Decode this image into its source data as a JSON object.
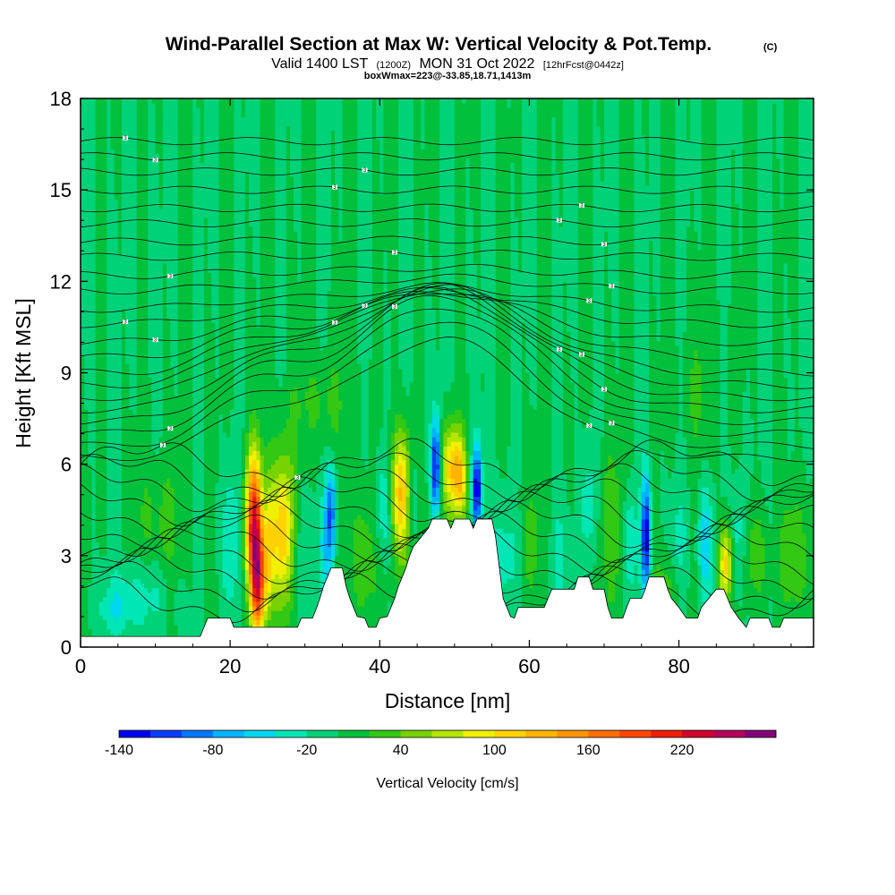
{
  "chart_data": {
    "type": "heatmap",
    "title": "Wind-Parallel Section at Max W: Vertical Velocity & Pot.Temp.",
    "title_mark": "(C)",
    "subtitle_parts": [
      "Valid 1400 LST",
      "(1200Z)",
      "MON 31 Oct 2022",
      "[12hrFcst@0442z]"
    ],
    "subtitle2": "boxWmax=223@-33.85,18.71,1413m",
    "xlabel": "Distance [nm]",
    "ylabel": "Height [Kft MSL]",
    "xlim": [
      0,
      98
    ],
    "ylim": [
      0,
      18
    ],
    "x_ticks": [
      0,
      20,
      40,
      60,
      80
    ],
    "y_ticks": [
      0,
      3,
      6,
      9,
      12,
      15,
      18
    ],
    "grid": false,
    "background_velocity": 0,
    "colorbar": {
      "label": "Vertical Velocity [cm/s]",
      "min": -140,
      "step": 20,
      "colors": [
        "#0000f0",
        "#0a3cff",
        "#0078ff",
        "#00b4ff",
        "#00d7f0",
        "#00e6b4",
        "#00d278",
        "#00c03c",
        "#32c814",
        "#78d200",
        "#b4e600",
        "#f0f000",
        "#ffd200",
        "#ffb400",
        "#ff9600",
        "#ff6e00",
        "#ff4600",
        "#f01e00",
        "#d2002d",
        "#b4005a",
        "#820078"
      ],
      "tick_values": [
        -140,
        -80,
        -20,
        40,
        100,
        160,
        220
      ],
      "tick_labels": [
        "-140",
        "-80",
        "-20",
        "40",
        "100",
        "160",
        "220"
      ]
    },
    "terrain_kft": [
      [
        0,
        0.35
      ],
      [
        16,
        0.35
      ],
      [
        16.5,
        0.65
      ],
      [
        17,
        0.95
      ],
      [
        20,
        0.95
      ],
      [
        20.5,
        0.65
      ],
      [
        29,
        0.65
      ],
      [
        29.5,
        0.95
      ],
      [
        31,
        0.95
      ],
      [
        31.5,
        1.25
      ],
      [
        32,
        1.6
      ],
      [
        32.5,
        2.0
      ],
      [
        33,
        2.3
      ],
      [
        33.5,
        2.6
      ],
      [
        35,
        2.6
      ],
      [
        35.5,
        2.0
      ],
      [
        36,
        1.6
      ],
      [
        36.5,
        1.3
      ],
      [
        37,
        1.0
      ],
      [
        38,
        0.95
      ],
      [
        38.5,
        0.65
      ],
      [
        39.5,
        0.65
      ],
      [
        40,
        0.95
      ],
      [
        41,
        1.0
      ],
      [
        41.5,
        1.3
      ],
      [
        42,
        1.6
      ],
      [
        42.5,
        2.0
      ],
      [
        43,
        2.3
      ],
      [
        43.5,
        2.6
      ],
      [
        44,
        3.0
      ],
      [
        44.5,
        3.3
      ],
      [
        45.5,
        3.6
      ],
      [
        46.5,
        3.9
      ],
      [
        47,
        4.2
      ],
      [
        49,
        4.2
      ],
      [
        49.5,
        3.9
      ],
      [
        50,
        4.2
      ],
      [
        52,
        4.2
      ],
      [
        52.5,
        3.9
      ],
      [
        53,
        4.2
      ],
      [
        55,
        4.2
      ],
      [
        55.5,
        3.6
      ],
      [
        56,
        2.6
      ],
      [
        56.5,
        1.6
      ],
      [
        57,
        1.3
      ],
      [
        57.5,
        1.0
      ],
      [
        58,
        0.95
      ],
      [
        58.5,
        1.3
      ],
      [
        62,
        1.3
      ],
      [
        62.5,
        1.6
      ],
      [
        63,
        1.9
      ],
      [
        66,
        1.9
      ],
      [
        66.5,
        2.3
      ],
      [
        68,
        2.3
      ],
      [
        68.5,
        1.9
      ],
      [
        70,
        1.9
      ],
      [
        70.5,
        1.3
      ],
      [
        71,
        0.95
      ],
      [
        72.5,
        0.95
      ],
      [
        73,
        1.3
      ],
      [
        73.5,
        1.6
      ],
      [
        75,
        1.6
      ],
      [
        75.5,
        1.9
      ],
      [
        76,
        2.3
      ],
      [
        78,
        2.3
      ],
      [
        78.5,
        1.9
      ],
      [
        79,
        1.6
      ],
      [
        80,
        1.3
      ],
      [
        81,
        0.95
      ],
      [
        82.5,
        0.95
      ],
      [
        83,
        1.3
      ],
      [
        84,
        1.6
      ],
      [
        85,
        1.9
      ],
      [
        86,
        1.9
      ],
      [
        86.5,
        1.6
      ],
      [
        87,
        1.3
      ],
      [
        88,
        0.95
      ],
      [
        89,
        0.65
      ],
      [
        89.5,
        0.95
      ],
      [
        92,
        0.95
      ],
      [
        92.5,
        0.65
      ],
      [
        93.5,
        0.65
      ],
      [
        94,
        0.95
      ],
      [
        98,
        0.95
      ]
    ],
    "updrafts": [
      {
        "x": 23.2,
        "y": 4.1,
        "sx": 0.8,
        "sy": 1.6,
        "w": 210
      },
      {
        "x": 23.8,
        "y": 2.0,
        "sx": 0.7,
        "sy": 1.2,
        "w": 170
      },
      {
        "x": 27.0,
        "y": 3.8,
        "sx": 1.2,
        "sy": 1.8,
        "w": 120
      },
      {
        "x": 25.2,
        "y": 3.2,
        "sx": 0.5,
        "sy": 1.5,
        "w": 60
      },
      {
        "x": 42.8,
        "y": 5.1,
        "sx": 1.0,
        "sy": 1.4,
        "w": 120
      },
      {
        "x": 49.6,
        "y": 5.9,
        "sx": 1.0,
        "sy": 1.0,
        "w": 110
      },
      {
        "x": 50.8,
        "y": 5.5,
        "sx": 0.6,
        "sy": 0.9,
        "w": 70
      },
      {
        "x": 86.2,
        "y": 2.7,
        "sx": 0.6,
        "sy": 0.9,
        "w": 110
      },
      {
        "x": 90.0,
        "y": 3.0,
        "sx": 1.5,
        "sy": 1.2,
        "w": 35
      },
      {
        "x": 95.0,
        "y": 3.0,
        "sx": 1.5,
        "sy": 1.5,
        "w": 45
      },
      {
        "x": 70.0,
        "y": 4.0,
        "sx": 2.5,
        "sy": 1.8,
        "w": 35
      },
      {
        "x": 10.5,
        "y": 4.0,
        "sx": 2.5,
        "sy": 1.5,
        "w": 28
      },
      {
        "x": 61.0,
        "y": 3.5,
        "sx": 2.0,
        "sy": 1.8,
        "w": 25
      },
      {
        "x": 78.5,
        "y": 1.8,
        "sx": 1.6,
        "sy": 0.9,
        "w": 35
      },
      {
        "x": 32.0,
        "y": 8.0,
        "sx": 3.0,
        "sy": 1.2,
        "w": 25
      },
      {
        "x": 83.0,
        "y": 8.5,
        "sx": 2.0,
        "sy": 2.0,
        "w": 20
      },
      {
        "x": 48.0,
        "y": 2.5,
        "sx": 4.5,
        "sy": 1.5,
        "w": 25
      },
      {
        "x": 37.5,
        "y": 3.0,
        "sx": 2.0,
        "sy": 1.5,
        "w": 30
      }
    ],
    "downdrafts": [
      {
        "x": 47.5,
        "y": 5.9,
        "sx": 0.45,
        "sy": 1.1,
        "w": -140
      },
      {
        "x": 53.0,
        "y": 5.2,
        "sx": 0.45,
        "sy": 1.0,
        "w": -140
      },
      {
        "x": 33.5,
        "y": 4.5,
        "sx": 0.5,
        "sy": 1.1,
        "w": -90
      },
      {
        "x": 32.8,
        "y": 3.2,
        "sx": 0.7,
        "sy": 1.2,
        "w": -50
      },
      {
        "x": 75.6,
        "y": 3.6,
        "sx": 0.45,
        "sy": 1.4,
        "w": -140
      },
      {
        "x": 40.5,
        "y": 4.5,
        "sx": 0.8,
        "sy": 1.4,
        "w": -50
      },
      {
        "x": 44.5,
        "y": 4.6,
        "sx": 0.6,
        "sy": 1.2,
        "w": -40
      },
      {
        "x": 68.0,
        "y": 4.5,
        "sx": 1.0,
        "sy": 1.5,
        "w": -55
      },
      {
        "x": 73.5,
        "y": 3.5,
        "sx": 0.7,
        "sy": 1.3,
        "w": -50
      },
      {
        "x": 83.5,
        "y": 3.5,
        "sx": 0.7,
        "sy": 1.4,
        "w": -55
      },
      {
        "x": 88.0,
        "y": 3.5,
        "sx": 0.7,
        "sy": 1.4,
        "w": -45
      },
      {
        "x": 56.5,
        "y": 3.0,
        "sx": 1.5,
        "sy": 1.5,
        "w": -35
      },
      {
        "x": 64.0,
        "y": 3.0,
        "sx": 1.5,
        "sy": 1.5,
        "w": -30
      },
      {
        "x": 8.0,
        "y": 1.8,
        "sx": 3.0,
        "sy": 0.9,
        "w": -30
      },
      {
        "x": 20.0,
        "y": 3.5,
        "sx": 0.8,
        "sy": 1.6,
        "w": -40
      },
      {
        "x": 29.0,
        "y": 3.0,
        "sx": 0.8,
        "sy": 1.6,
        "w": -30
      },
      {
        "x": 80.0,
        "y": 3.0,
        "sx": 0.8,
        "sy": 1.5,
        "w": -30
      },
      {
        "x": 93.0,
        "y": 3.0,
        "sx": 0.8,
        "sy": 1.5,
        "w": -25
      },
      {
        "x": 4.5,
        "y": 1.2,
        "sx": 2.0,
        "sy": 0.6,
        "w": -25
      }
    ],
    "theta_contours": {
      "base_kft": [
        16.6,
        16.1,
        15.6,
        15.0,
        14.4,
        13.9,
        13.3,
        12.8,
        12.2,
        11.7,
        11.1,
        10.6,
        10.0,
        9.5,
        9.0,
        8.6,
        8.2,
        7.8,
        7.4,
        7.0,
        6.6,
        6.2
      ],
      "low_kft": [
        6.0,
        5.6,
        5.2,
        4.8,
        4.4,
        4.0,
        3.6,
        3.2,
        2.8,
        2.4,
        2.0,
        1.6
      ],
      "label_text": "3"
    }
  }
}
